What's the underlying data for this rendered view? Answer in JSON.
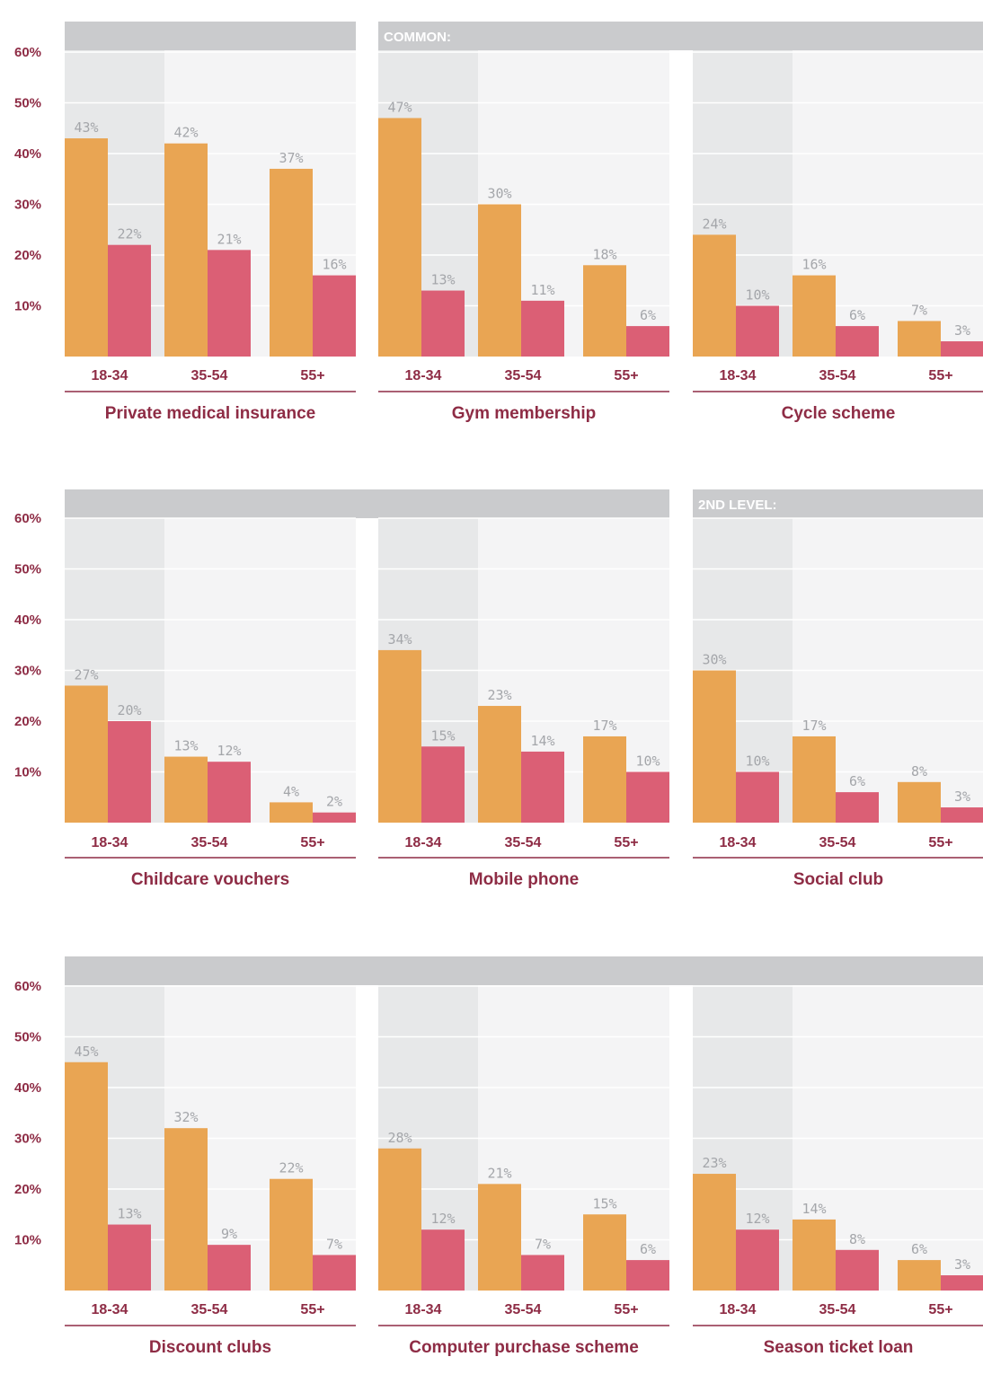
{
  "colors": {
    "series_a": "#e9a553",
    "series_b": "#db5f75",
    "text_accent": "#8e2c45",
    "value_label": "#a4a6aa",
    "band": "#cacbcd",
    "col_dark": "#e7e8e9",
    "col_light": "#f4f4f5",
    "rule": "#8e2c45"
  },
  "row_bands": [
    {
      "label": "COMMON:"
    },
    {
      "label": "2ND LEVEL:"
    },
    {
      "label": ""
    }
  ],
  "chart_data": [
    {
      "type": "bar",
      "title": "Private medical insurance",
      "categories": [
        "18-34",
        "35-54",
        "55+"
      ],
      "series": [
        {
          "name": "orange",
          "values": [
            43,
            42,
            37
          ]
        },
        {
          "name": "pink",
          "values": [
            22,
            21,
            16
          ]
        }
      ],
      "ylim": [
        0,
        60
      ],
      "yticks": [
        "10%",
        "20%",
        "30%",
        "40%",
        "50%",
        "60%"
      ]
    },
    {
      "type": "bar",
      "title": "Gym membership",
      "categories": [
        "18-34",
        "35-54",
        "55+"
      ],
      "series": [
        {
          "name": "orange",
          "values": [
            47,
            30,
            18
          ]
        },
        {
          "name": "pink",
          "values": [
            13,
            11,
            6
          ]
        }
      ],
      "ylim": [
        0,
        60
      ]
    },
    {
      "type": "bar",
      "title": "Cycle scheme",
      "categories": [
        "18-34",
        "35-54",
        "55+"
      ],
      "series": [
        {
          "name": "orange",
          "values": [
            24,
            16,
            7
          ]
        },
        {
          "name": "pink",
          "values": [
            10,
            6,
            3
          ]
        }
      ],
      "ylim": [
        0,
        60
      ]
    },
    {
      "type": "bar",
      "title": "Childcare vouchers",
      "categories": [
        "18-34",
        "35-54",
        "55+"
      ],
      "series": [
        {
          "name": "orange",
          "values": [
            27,
            13,
            4
          ]
        },
        {
          "name": "pink",
          "values": [
            20,
            12,
            2
          ]
        }
      ],
      "ylim": [
        0,
        60
      ],
      "yticks": [
        "10%",
        "20%",
        "30%",
        "40%",
        "50%",
        "60%"
      ]
    },
    {
      "type": "bar",
      "title": "Mobile phone",
      "categories": [
        "18-34",
        "35-54",
        "55+"
      ],
      "series": [
        {
          "name": "orange",
          "values": [
            34,
            23,
            17
          ]
        },
        {
          "name": "pink",
          "values": [
            15,
            14,
            10
          ]
        }
      ],
      "ylim": [
        0,
        60
      ]
    },
    {
      "type": "bar",
      "title": "Social club",
      "categories": [
        "18-34",
        "35-54",
        "55+"
      ],
      "series": [
        {
          "name": "orange",
          "values": [
            30,
            17,
            8
          ]
        },
        {
          "name": "pink",
          "values": [
            10,
            6,
            3
          ]
        }
      ],
      "ylim": [
        0,
        60
      ]
    },
    {
      "type": "bar",
      "title": "Discount clubs",
      "categories": [
        "18-34",
        "35-54",
        "55+"
      ],
      "series": [
        {
          "name": "orange",
          "values": [
            45,
            32,
            22
          ]
        },
        {
          "name": "pink",
          "values": [
            13,
            9,
            7
          ]
        }
      ],
      "ylim": [
        0,
        60
      ],
      "yticks": [
        "10%",
        "20%",
        "30%",
        "40%",
        "50%",
        "60%"
      ]
    },
    {
      "type": "bar",
      "title": "Computer purchase scheme",
      "categories": [
        "18-34",
        "35-54",
        "55+"
      ],
      "series": [
        {
          "name": "orange",
          "values": [
            28,
            21,
            15
          ]
        },
        {
          "name": "pink",
          "values": [
            12,
            7,
            6
          ]
        }
      ],
      "ylim": [
        0,
        60
      ]
    },
    {
      "type": "bar",
      "title": "Season ticket loan",
      "categories": [
        "18-34",
        "35-54",
        "55+"
      ],
      "series": [
        {
          "name": "orange",
          "values": [
            23,
            14,
            6
          ]
        },
        {
          "name": "pink",
          "values": [
            12,
            8,
            3
          ]
        }
      ],
      "ylim": [
        0,
        60
      ]
    }
  ]
}
